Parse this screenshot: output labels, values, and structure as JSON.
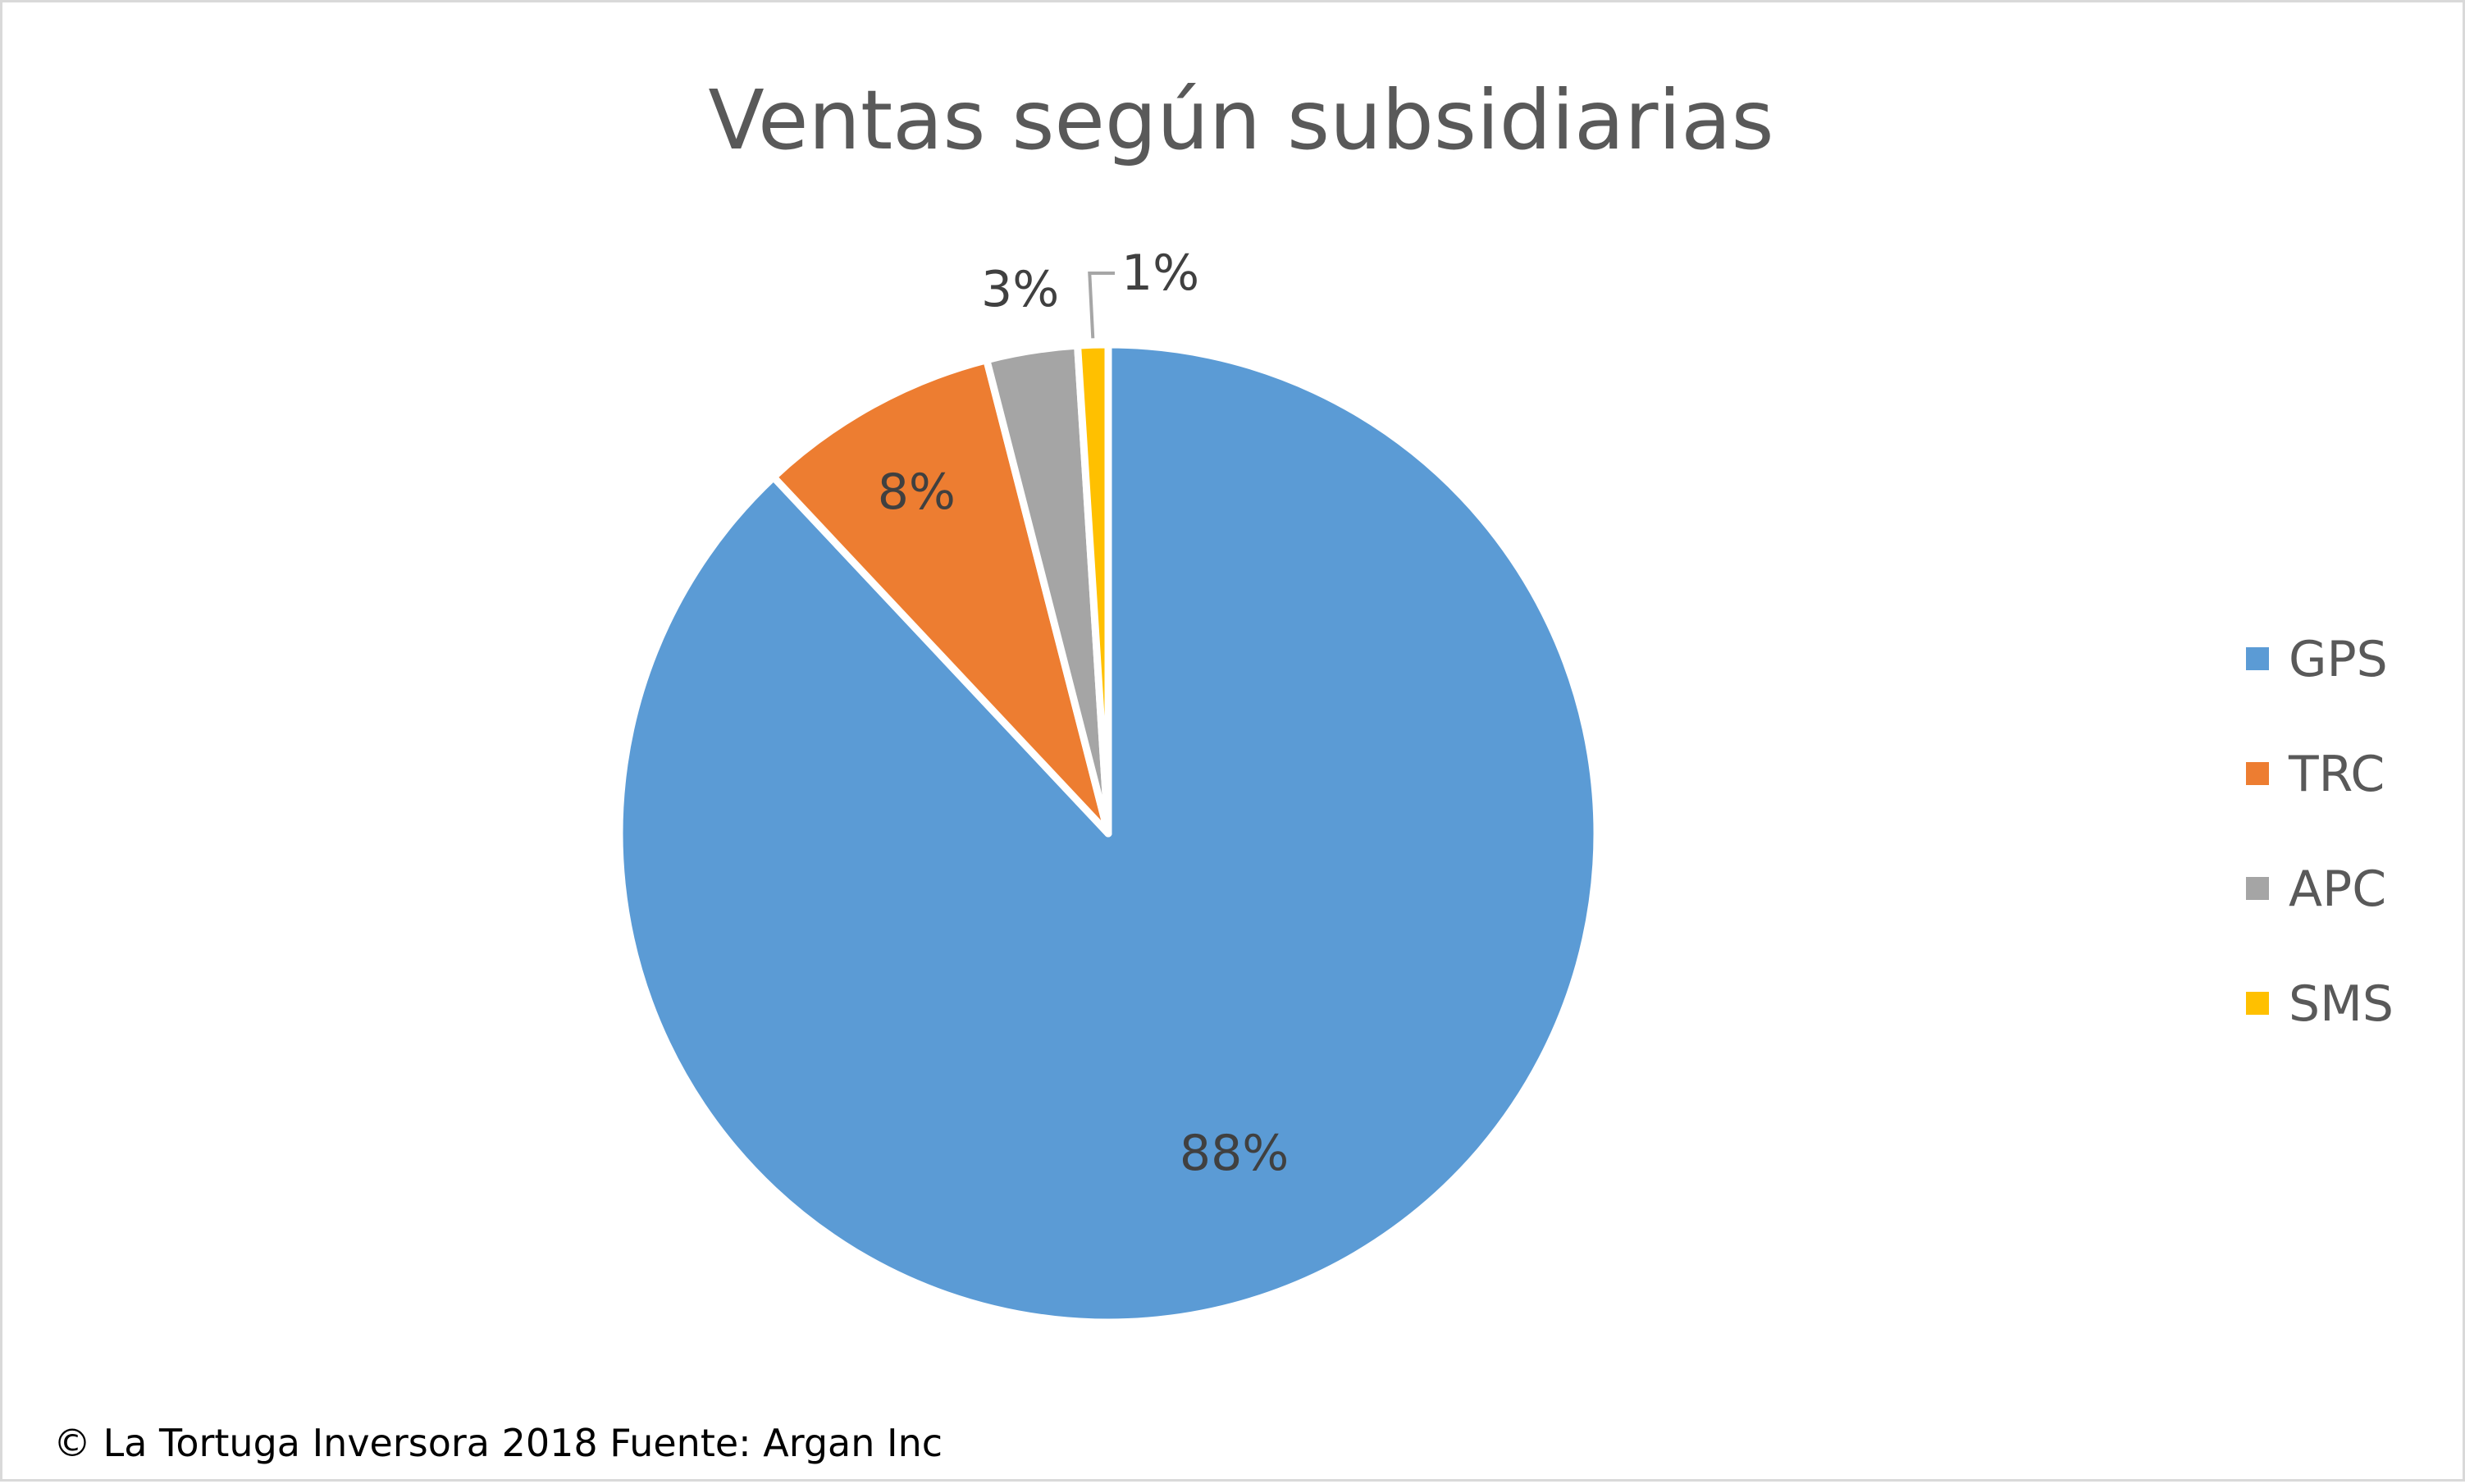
{
  "chart_data": {
    "type": "pie",
    "title": "Ventas según subsidiarias",
    "categories": [
      "GPS",
      "TRC",
      "APC",
      "SMS"
    ],
    "values": [
      88,
      8,
      3,
      1
    ],
    "labels": [
      "88%",
      "8%",
      "3%",
      "1%"
    ],
    "colors": [
      "#5b9bd5",
      "#ed7d31",
      "#a5a5a5",
      "#ffc000"
    ],
    "start_angle_deg": 0,
    "direction": "clockwise",
    "legend_position": "right",
    "slice_border_color": "#ffffff"
  },
  "footer": {
    "credit": "© La Tortuga Inversora 2018 Fuente: Argan Inc"
  }
}
